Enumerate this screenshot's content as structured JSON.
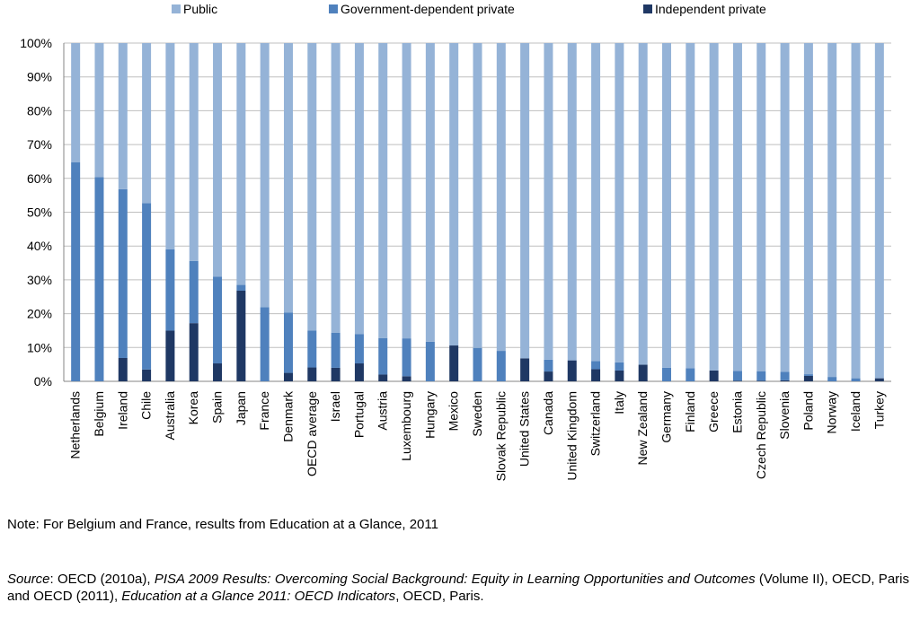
{
  "chart_data": {
    "type": "bar",
    "stacked": true,
    "categories": [
      "Netherlands",
      "Belgium",
      "Ireland",
      "Chile",
      "Australia",
      "Korea",
      "Spain",
      "Japan",
      "France",
      "Denmark",
      "OECD average",
      "Israel",
      "Portugal",
      "Austria",
      "Luxembourg",
      "Hungary",
      "Mexico",
      "Sweden",
      "Slovak Republic",
      "United States",
      "Canada",
      "United Kingdom",
      "Switzerland",
      "Italy",
      "New Zealand",
      "Germany",
      "Finland",
      "Greece",
      "Estonia",
      "Czech Republic",
      "Slovenia",
      "Poland",
      "Norway",
      "Iceland",
      "Turkey"
    ],
    "series": [
      {
        "name": "Public",
        "color": "#95b3d7",
        "values": [
          35.2,
          39.6,
          43.2,
          47.3,
          61,
          64.4,
          69.1,
          71.5,
          78.1,
          79.7,
          85,
          85.6,
          86,
          87.2,
          87.3,
          88.3,
          89.4,
          90.1,
          91,
          93.2,
          93.6,
          93.8,
          94,
          94.4,
          95.1,
          96,
          96.1,
          96.8,
          96.9,
          97,
          97.2,
          97.9,
          98.7,
          99.1,
          99.1
        ]
      },
      {
        "name": "Government-dependent private",
        "color": "#4f81bd",
        "values": [
          64.8,
          60.4,
          49.9,
          49.2,
          24,
          18.4,
          25.6,
          1.7,
          21.9,
          17.8,
          10.9,
          10.4,
          8.7,
          10.8,
          11.2,
          11.7,
          0,
          9.9,
          9,
          0,
          3.5,
          0,
          2.4,
          2.4,
          0,
          4,
          3.9,
          0,
          2.9,
          2.8,
          2.5,
          0.5,
          1.3,
          0.9,
          0
        ]
      },
      {
        "name": "Independent private",
        "color": "#1f3864",
        "values": [
          0,
          0,
          6.9,
          3.5,
          15,
          17.2,
          5.3,
          26.8,
          0,
          2.5,
          4.1,
          4,
          5.3,
          2,
          1.5,
          0,
          10.6,
          0,
          0,
          6.8,
          2.9,
          6.2,
          3.6,
          3.2,
          4.9,
          0,
          0,
          3.2,
          0.2,
          0.2,
          0.3,
          1.6,
          0,
          0,
          0.9
        ]
      }
    ],
    "y_ticks": [
      "0%",
      "10%",
      "20%",
      "30%",
      "40%",
      "50%",
      "60%",
      "70%",
      "80%",
      "90%",
      "100%"
    ],
    "ylim": [
      0,
      100
    ],
    "grid": true,
    "legend_position": "top"
  },
  "note": "Note: For Belgium and France, results from Education at a Glance, 2011",
  "source": {
    "label": "Source",
    "part1": ": OECD (2010a), ",
    "title1": "PISA 2009 Results: Overcoming Social Background: Equity in Learning Opportunities and Outcomes",
    "part2": " (Volume II), OECD, Paris and OECD (2011), ",
    "title2": "Education at a Glance 2011: OECD Indicators",
    "part3": ", OECD, Paris."
  }
}
